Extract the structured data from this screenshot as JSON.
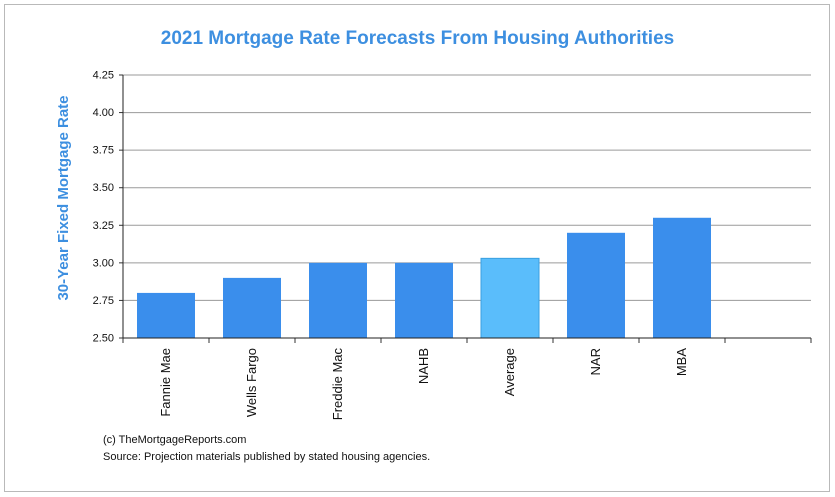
{
  "chart_data": {
    "type": "bar",
    "title": "2021 Mortgage Rate Forecasts From Housing Authorities",
    "xlabel": "",
    "ylabel": "30-Year Fixed Mortgage Rate",
    "categories": [
      "Fannie Mae",
      "Wells Fargo",
      "Freddie Mac",
      "NAHB",
      "Average",
      "NAR",
      "MBA"
    ],
    "values": [
      2.8,
      2.9,
      3.0,
      3.0,
      3.03,
      3.2,
      3.3
    ],
    "ylim": [
      2.5,
      4.25
    ],
    "yticks": [
      "2.50",
      "2.75",
      "3.00",
      "3.25",
      "3.50",
      "3.75",
      "4.00",
      "4.25"
    ],
    "grid": true,
    "legend": "none",
    "colors": {
      "bar": "#3a8eec",
      "highlight": "#5abdfb",
      "highlight_category": "Average",
      "title": "#3d8fe0",
      "grid": "#9a9a9a"
    }
  },
  "notes": {
    "copyright": "(c) TheMortgageReports.com",
    "source": "Source: Projection materials published by stated housing agencies."
  }
}
